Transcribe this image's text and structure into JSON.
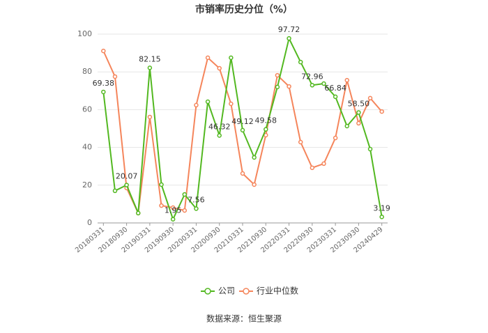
{
  "chart_data": {
    "type": "line",
    "title": "市销率历史分位（%）",
    "source": "数据来源：恒生聚源",
    "categories": [
      "20180331",
      null,
      "20180930",
      null,
      "20190331",
      null,
      "20190930",
      null,
      "20200331",
      null,
      "20200930",
      null,
      "20210331",
      null,
      "20210930",
      null,
      "20220331",
      null,
      "20220930",
      null,
      "20230331",
      null,
      "20230930",
      null,
      "20240429"
    ],
    "series": [
      {
        "name": "公司",
        "color": "#52b820",
        "values": [
          69.38,
          17.0,
          20.07,
          5.2,
          82.15,
          20.3,
          1.95,
          15.1,
          7.56,
          64.2,
          46.32,
          87.5,
          49.12,
          34.7,
          49.58,
          72.0,
          97.72,
          85.2,
          72.96,
          73.8,
          66.84,
          51.3,
          58.5,
          39.1,
          3.19
        ],
        "value_labels": [
          "69.38",
          null,
          "20.07",
          null,
          "82.15",
          null,
          "1.95",
          null,
          "7.56",
          null,
          "46.32",
          null,
          "49.12",
          null,
          "49.58",
          null,
          "97.72",
          null,
          "72.96",
          null,
          "66.84",
          null,
          "58.50",
          null,
          "3.19"
        ]
      },
      {
        "name": "行业中位数",
        "color": "#f5855b",
        "values": [
          91.1,
          77.5,
          18.5,
          5.2,
          56.1,
          9.2,
          8.1,
          6.6,
          62.4,
          87.5,
          81.9,
          63.1,
          26.2,
          20.3,
          46.5,
          78.2,
          72.3,
          42.8,
          29.2,
          31.4,
          45.0,
          75.6,
          52.8,
          66.1,
          59.0
        ]
      }
    ],
    "ylim": [
      0,
      100
    ],
    "yticks": [
      0,
      20,
      40,
      60,
      80,
      100
    ],
    "grid": true
  }
}
